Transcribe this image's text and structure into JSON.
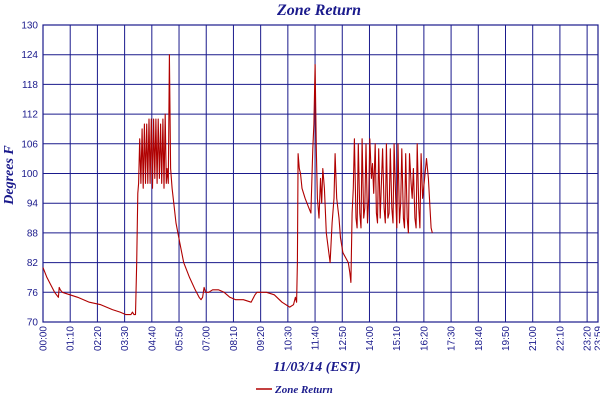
{
  "chart_data": {
    "type": "line",
    "title": "Zone Return",
    "xlabel": "11/03/14 (EST)",
    "ylabel": "Degrees F",
    "ylim": [
      70,
      130
    ],
    "yticks": [
      70,
      76,
      82,
      88,
      94,
      100,
      106,
      112,
      118,
      124,
      130
    ],
    "xlim": [
      0,
      1440
    ],
    "xtick_labels": [
      "00:00",
      "01:10",
      "02:20",
      "03:30",
      "04:40",
      "05:50",
      "07:00",
      "08:10",
      "09:20",
      "10:30",
      "11:40",
      "12:50",
      "14:00",
      "15:10",
      "16:20",
      "17:30",
      "18:40",
      "19:50",
      "21:00",
      "22:10",
      "23:20",
      "23:59"
    ],
    "grid": true,
    "legend_position": "bottom",
    "series": [
      {
        "name": "Zone Return",
        "color": "#b00000",
        "points": [
          [
            0,
            81
          ],
          [
            10,
            79
          ],
          [
            30,
            76
          ],
          [
            40,
            75
          ],
          [
            42,
            77
          ],
          [
            45,
            76.5
          ],
          [
            50,
            76
          ],
          [
            70,
            75.5
          ],
          [
            90,
            75
          ],
          [
            120,
            74
          ],
          [
            150,
            73.5
          ],
          [
            180,
            72.5
          ],
          [
            200,
            72
          ],
          [
            215,
            71.5
          ],
          [
            228,
            71.5
          ],
          [
            232,
            72
          ],
          [
            236,
            71.5
          ],
          [
            240,
            71.5
          ],
          [
            243,
            82
          ],
          [
            246,
            96
          ],
          [
            248,
            98
          ],
          [
            251,
            107
          ],
          [
            254,
            98
          ],
          [
            257,
            109
          ],
          [
            260,
            97
          ],
          [
            263,
            110
          ],
          [
            266,
            98
          ],
          [
            269,
            110
          ],
          [
            272,
            98
          ],
          [
            275,
            111
          ],
          [
            278,
            98
          ],
          [
            281,
            111
          ],
          [
            284,
            97
          ],
          [
            287,
            111
          ],
          [
            290,
            99
          ],
          [
            293,
            111
          ],
          [
            296,
            98
          ],
          [
            299,
            111
          ],
          [
            302,
            99
          ],
          [
            305,
            110
          ],
          [
            308,
            98
          ],
          [
            311,
            111
          ],
          [
            314,
            97
          ],
          [
            317,
            112
          ],
          [
            320,
            98
          ],
          [
            322,
            101
          ],
          [
            325,
            98
          ],
          [
            328,
            124
          ],
          [
            331,
            101
          ],
          [
            335,
            97
          ],
          [
            345,
            90
          ],
          [
            355,
            86
          ],
          [
            365,
            82
          ],
          [
            380,
            79
          ],
          [
            395,
            76.5
          ],
          [
            405,
            75
          ],
          [
            410,
            74.5
          ],
          [
            414,
            75
          ],
          [
            418,
            77
          ],
          [
            422,
            76
          ],
          [
            430,
            76
          ],
          [
            440,
            76.5
          ],
          [
            455,
            76.5
          ],
          [
            470,
            76
          ],
          [
            485,
            75
          ],
          [
            500,
            74.5
          ],
          [
            520,
            74.5
          ],
          [
            540,
            74
          ],
          [
            550,
            75.5
          ],
          [
            555,
            76
          ],
          [
            580,
            76
          ],
          [
            600,
            75.5
          ],
          [
            620,
            74
          ],
          [
            640,
            73
          ],
          [
            650,
            73.5
          ],
          [
            655,
            75
          ],
          [
            658,
            74
          ],
          [
            660,
            82
          ],
          [
            662,
            104
          ],
          [
            665,
            101
          ],
          [
            668,
            100
          ],
          [
            672,
            97
          ],
          [
            680,
            95
          ],
          [
            690,
            93
          ],
          [
            695,
            92
          ],
          [
            700,
            105
          ],
          [
            703,
            110
          ],
          [
            706,
            122
          ],
          [
            709,
            105
          ],
          [
            712,
            95
          ],
          [
            716,
            91
          ],
          [
            720,
            99
          ],
          [
            723,
            94
          ],
          [
            726,
            101
          ],
          [
            730,
            97
          ],
          [
            735,
            88
          ],
          [
            740,
            85
          ],
          [
            745,
            82
          ],
          [
            750,
            90
          ],
          [
            755,
            95
          ],
          [
            758,
            104
          ],
          [
            762,
            95
          ],
          [
            768,
            91
          ],
          [
            772,
            87
          ],
          [
            778,
            84
          ],
          [
            785,
            83
          ],
          [
            792,
            82
          ],
          [
            796,
            80
          ],
          [
            799,
            78
          ],
          [
            802,
            92
          ],
          [
            805,
            97
          ],
          [
            808,
            107
          ],
          [
            812,
            91
          ],
          [
            815,
            89
          ],
          [
            818,
            106
          ],
          [
            822,
            92
          ],
          [
            825,
            89
          ],
          [
            828,
            107
          ],
          [
            832,
            91
          ],
          [
            835,
            93
          ],
          [
            838,
            106
          ],
          [
            842,
            90
          ],
          [
            845,
            95
          ],
          [
            848,
            107
          ],
          [
            852,
            99
          ],
          [
            855,
            102
          ],
          [
            858,
            96
          ],
          [
            862,
            106
          ],
          [
            865,
            92
          ],
          [
            868,
            90
          ],
          [
            871,
            105
          ],
          [
            875,
            91
          ],
          [
            878,
            98
          ],
          [
            881,
            105
          ],
          [
            885,
            93
          ],
          [
            888,
            90
          ],
          [
            891,
            106
          ],
          [
            895,
            91
          ],
          [
            898,
            92
          ],
          [
            901,
            105
          ],
          [
            905,
            93
          ],
          [
            908,
            90
          ],
          [
            911,
            106
          ],
          [
            915,
            95
          ],
          [
            918,
            89
          ],
          [
            921,
            106
          ],
          [
            925,
            90
          ],
          [
            928,
            94
          ],
          [
            931,
            105
          ],
          [
            935,
            91
          ],
          [
            938,
            89
          ],
          [
            941,
            104
          ],
          [
            945,
            91
          ],
          [
            948,
            88
          ],
          [
            951,
            104
          ],
          [
            955,
            98
          ],
          [
            958,
            95
          ],
          [
            961,
            101
          ],
          [
            965,
            91
          ],
          [
            968,
            89
          ],
          [
            971,
            106
          ],
          [
            975,
            93
          ],
          [
            978,
            89
          ],
          [
            981,
            104
          ],
          [
            985,
            95
          ],
          [
            990,
            99
          ],
          [
            995,
            103
          ],
          [
            1000,
            99
          ],
          [
            1004,
            93
          ],
          [
            1007,
            89
          ],
          [
            1010,
            88
          ]
        ]
      }
    ]
  }
}
